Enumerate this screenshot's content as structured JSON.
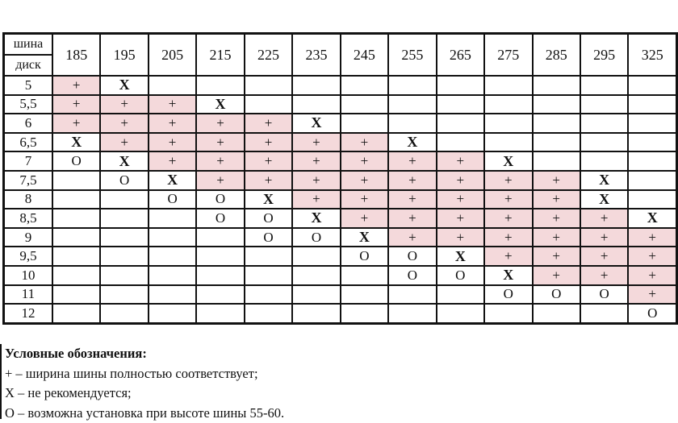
{
  "table": {
    "corner_top": "шина",
    "corner_bottom": "диск",
    "columns": [
      "185",
      "195",
      "205",
      "215",
      "225",
      "235",
      "245",
      "255",
      "265",
      "275",
      "285",
      "295",
      "325"
    ],
    "rows": [
      {
        "disk": "5",
        "cells": [
          "+",
          "X",
          "",
          "",
          "",
          "",
          "",
          "",
          "",
          "",
          "",
          "",
          ""
        ]
      },
      {
        "disk": "5,5",
        "cells": [
          "+",
          "+",
          "+",
          "X",
          "",
          "",
          "",
          "",
          "",
          "",
          "",
          "",
          ""
        ]
      },
      {
        "disk": "6",
        "cells": [
          "+",
          "+",
          "+",
          "+",
          "+",
          "X",
          "",
          "",
          "",
          "",
          "",
          "",
          ""
        ]
      },
      {
        "disk": "6,5",
        "cells": [
          "X",
          "+",
          "+",
          "+",
          "+",
          "+",
          "+",
          "X",
          "",
          "",
          "",
          "",
          ""
        ]
      },
      {
        "disk": "7",
        "cells": [
          "O",
          "X",
          "+",
          "+",
          "+",
          "+",
          "+",
          "+",
          "+",
          "X",
          "",
          "",
          ""
        ]
      },
      {
        "disk": "7,5",
        "cells": [
          "",
          "O",
          "X",
          "+",
          "+",
          "+",
          "+",
          "+",
          "+",
          "+",
          "+",
          "X",
          ""
        ]
      },
      {
        "disk": "8",
        "cells": [
          "",
          "",
          "O",
          "O",
          "X",
          "+",
          "+",
          "+",
          "+",
          "+",
          "+",
          "X",
          ""
        ]
      },
      {
        "disk": "8,5",
        "cells": [
          "",
          "",
          "",
          "O",
          "O",
          "X",
          "+",
          "+",
          "+",
          "+",
          "+",
          "+",
          "X"
        ]
      },
      {
        "disk": "9",
        "cells": [
          "",
          "",
          "",
          "",
          "O",
          "O",
          "X",
          "+",
          "+",
          "+",
          "+",
          "+",
          "+"
        ]
      },
      {
        "disk": "9,5",
        "cells": [
          "",
          "",
          "",
          "",
          "",
          "",
          "O",
          "O",
          "X",
          "+",
          "+",
          "+",
          "+"
        ]
      },
      {
        "disk": "10",
        "cells": [
          "",
          "",
          "",
          "",
          "",
          "",
          "",
          "O",
          "O",
          "X",
          "+",
          "+",
          "+"
        ]
      },
      {
        "disk": "11",
        "cells": [
          "",
          "",
          "",
          "",
          "",
          "",
          "",
          "",
          "",
          "O",
          "O",
          "O",
          "+"
        ]
      },
      {
        "disk": "12",
        "cells": [
          "",
          "",
          "",
          "",
          "",
          "",
          "",
          "",
          "",
          "",
          "",
          "",
          "O"
        ]
      }
    ]
  },
  "legend": {
    "title": "Условные обозначения:",
    "lines": [
      "+ – ширина шины полностью соответствует;",
      "X – не рекомендуется;",
      "O – возможна установка при высоте шины 55-60."
    ]
  },
  "colors": {
    "fit_cell": "#f4d9db",
    "border": "#111111"
  }
}
